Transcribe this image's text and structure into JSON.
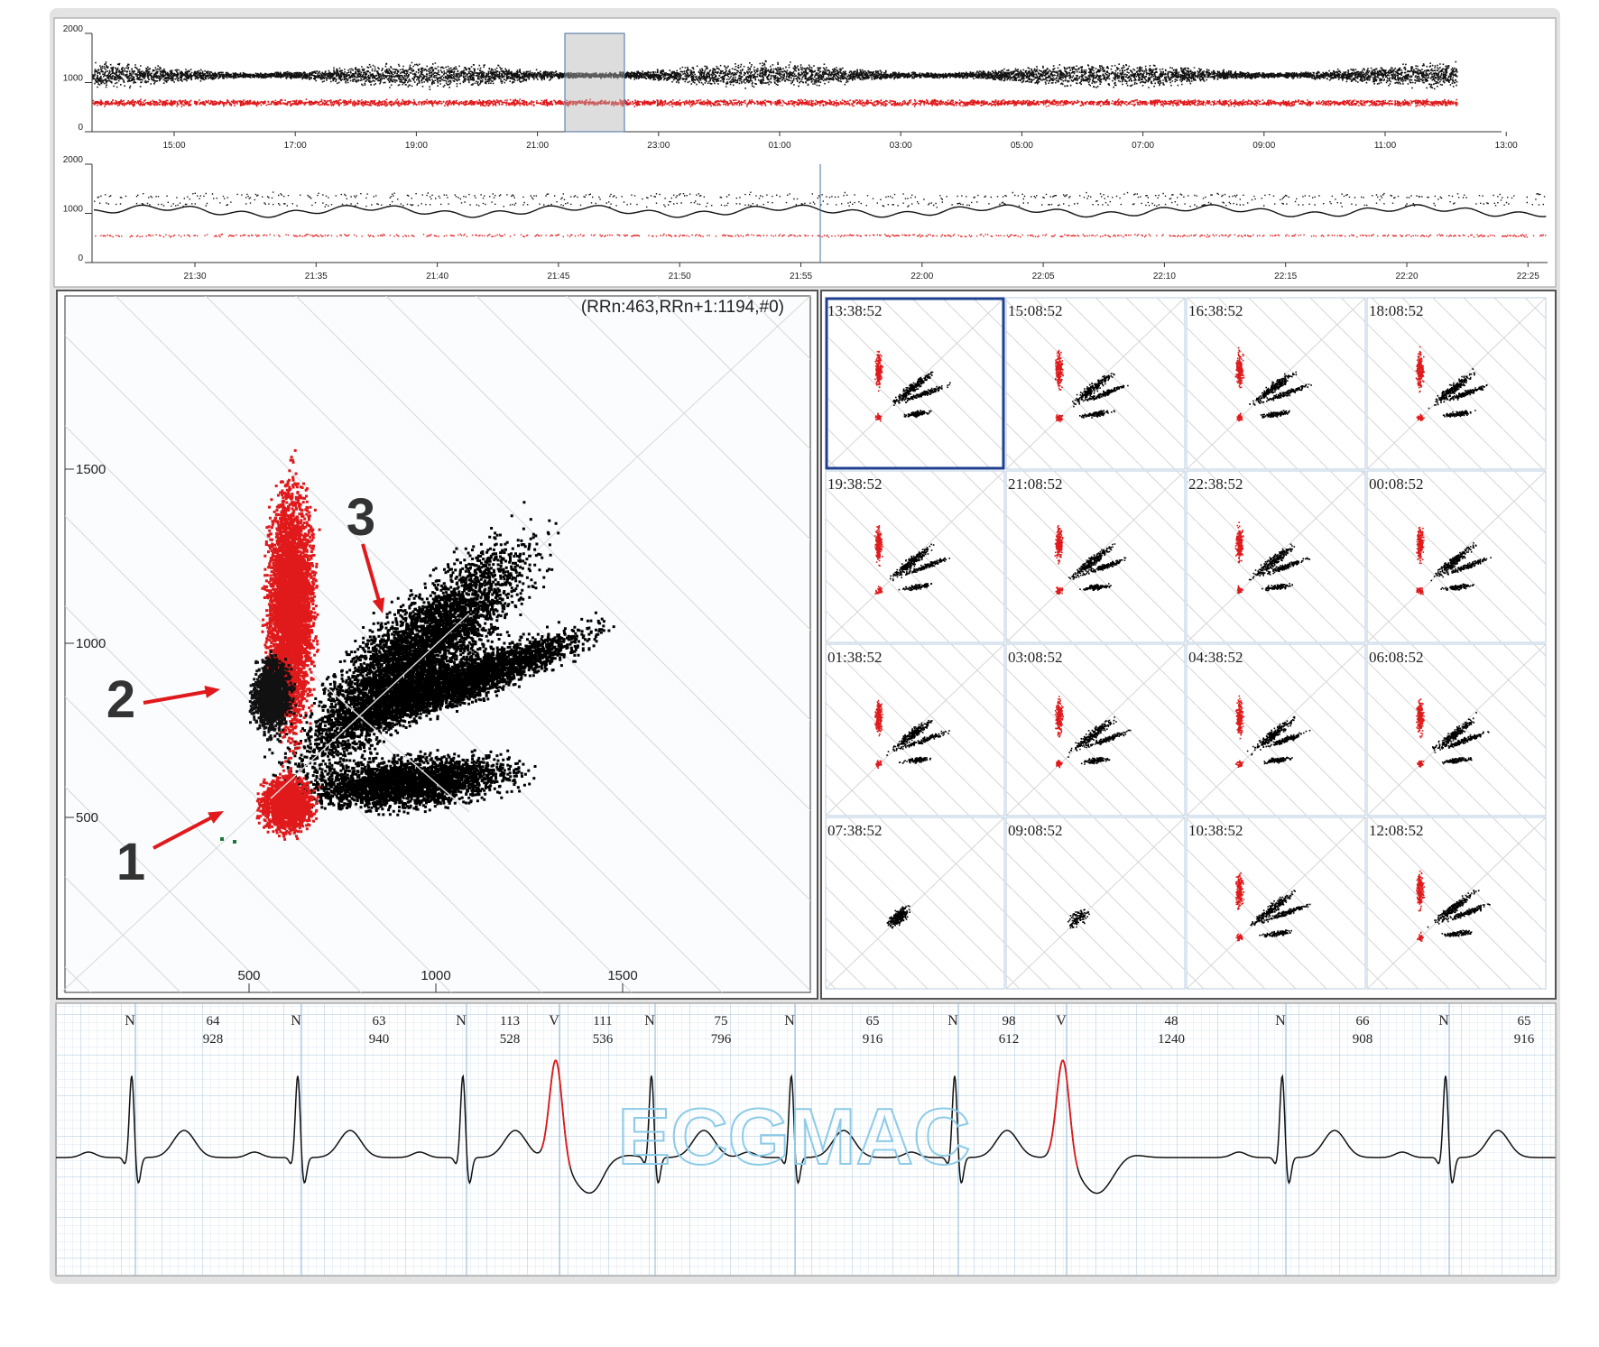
{
  "trend_overview": {
    "yticks": [
      0,
      1000,
      2000
    ],
    "xticks": [
      "15:00",
      "17:00",
      "19:00",
      "21:00",
      "23:00",
      "01:00",
      "03:00",
      "05:00",
      "07:00",
      "09:00",
      "11:00",
      "13:00"
    ]
  },
  "trend_detail": {
    "yticks": [
      0,
      1000,
      2000
    ],
    "xticks": [
      "21:30",
      "21:35",
      "21:40",
      "21:45",
      "21:50",
      "21:55",
      "22:00",
      "22:05",
      "22:10",
      "22:15",
      "22:20",
      "22:25"
    ]
  },
  "lorenz": {
    "annotation": "(RRn:463,RRn+1:1194,#0)",
    "xticks": [
      500,
      1000,
      1500
    ],
    "yticks": [
      500,
      1000,
      1500
    ],
    "callouts": [
      "1",
      "2",
      "3"
    ]
  },
  "thumbnails": [
    "13:38:52",
    "15:08:52",
    "16:38:52",
    "18:08:52",
    "19:38:52",
    "21:08:52",
    "22:38:52",
    "00:08:52",
    "01:38:52",
    "03:08:52",
    "04:38:52",
    "06:08:52",
    "07:38:52",
    "09:08:52",
    "10:38:52",
    "12:08:52"
  ],
  "ecg": {
    "watermark": "ECGMAC",
    "beats": [
      {
        "type": "N",
        "hr": 64,
        "rr": 928
      },
      {
        "type": "N",
        "hr": 63,
        "rr": 940
      },
      {
        "type": "N",
        "hr": 113,
        "rr": 528
      },
      {
        "type": "V",
        "hr": 111,
        "rr": 536
      },
      {
        "type": "N",
        "hr": 75,
        "rr": 796
      },
      {
        "type": "N",
        "hr": 65,
        "rr": 916
      },
      {
        "type": "N",
        "hr": 98,
        "rr": 612
      },
      {
        "type": "V",
        "hr": 48,
        "rr": 1240
      },
      {
        "type": "N",
        "hr": 66,
        "rr": 908
      },
      {
        "type": "N",
        "hr": 65,
        "rr": 916
      }
    ]
  }
}
